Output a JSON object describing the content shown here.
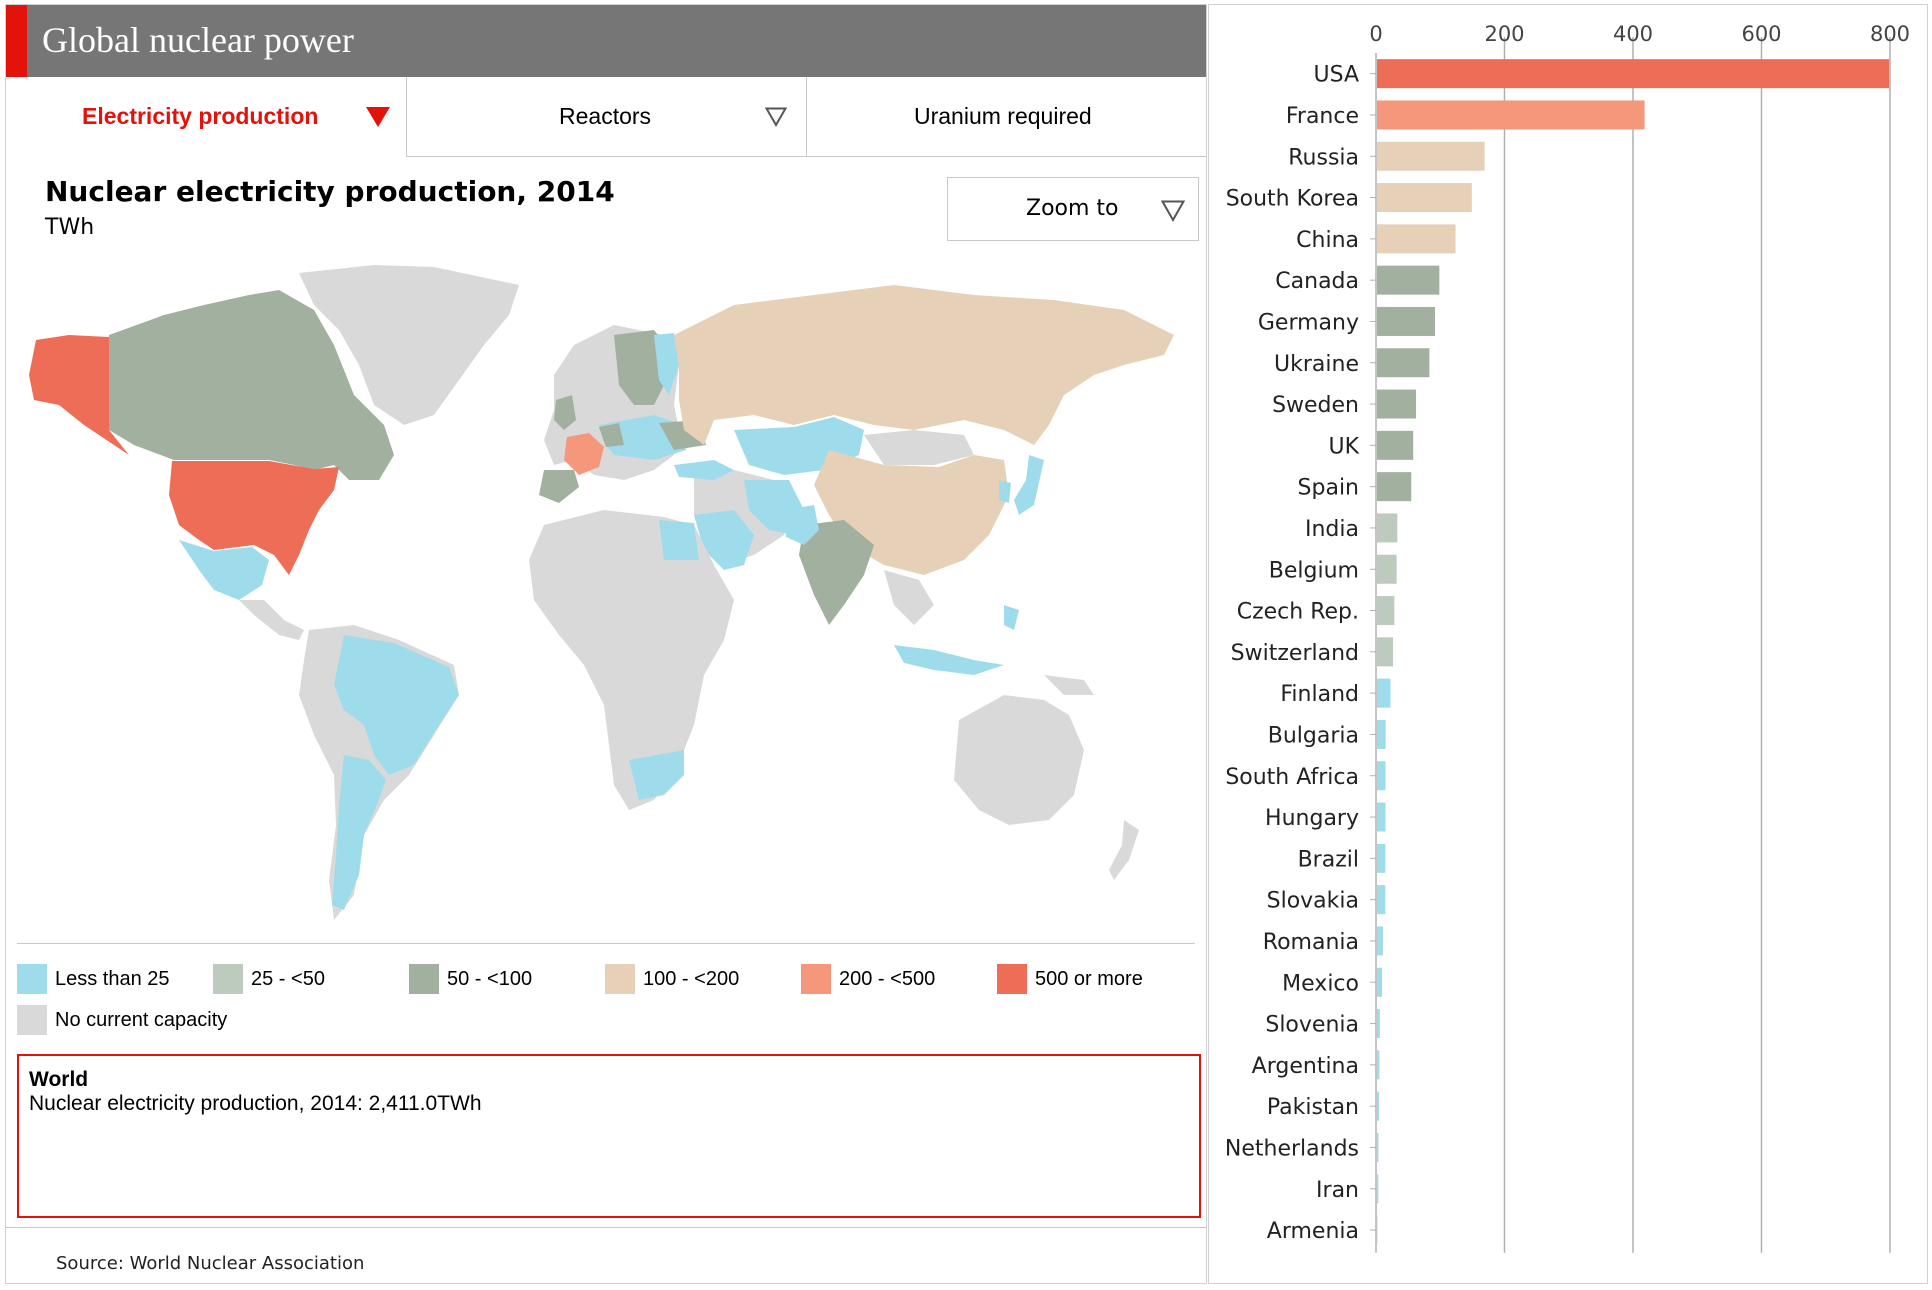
{
  "header": {
    "title": "Global nuclear power"
  },
  "tabs": [
    {
      "label": "Electricity production",
      "active": true,
      "has_arrow": true
    },
    {
      "label": "Reactors",
      "active": false,
      "has_arrow": true
    },
    {
      "label": "Uranium required",
      "active": false,
      "has_arrow": false
    }
  ],
  "map": {
    "title": "Nuclear electricity production, 2014",
    "unit": "TWh",
    "zoom_label": "Zoom to"
  },
  "legend": [
    {
      "label": "Less than 25",
      "color": "#9fdceb"
    },
    {
      "label": "25 - <50",
      "color": "#bccbbd"
    },
    {
      "label": "50 - <100",
      "color": "#a2b09f"
    },
    {
      "label": "100 - <200",
      "color": "#e6d1b8"
    },
    {
      "label": "200 - <500",
      "color": "#f4977a"
    },
    {
      "label": "500 or more",
      "color": "#ee6d56"
    },
    {
      "label": "No current capacity",
      "color": "#d9d9d9"
    }
  ],
  "info": {
    "title": "World",
    "text": "Nuclear electricity production, 2014: 2,411.0TWh"
  },
  "source": "Source: World Nuclear Association",
  "colors": {
    "accent": "#e3120b",
    "title_bar": "#767676",
    "grid": "#aaaaaa"
  },
  "chart_data": {
    "type": "bar",
    "orientation": "horizontal",
    "title": "Nuclear electricity production, 2014",
    "unit": "TWh",
    "xlim": [
      0,
      800
    ],
    "ticks": [
      0,
      200,
      400,
      600,
      800
    ],
    "grid": true,
    "categories": [
      "USA",
      "France",
      "Russia",
      "South Korea",
      "China",
      "Canada",
      "Germany",
      "Ukraine",
      "Sweden",
      "UK",
      "Spain",
      "India",
      "Belgium",
      "Czech Rep.",
      "Switzerland",
      "Finland",
      "Bulgaria",
      "South Africa",
      "Hungary",
      "Brazil",
      "Slovakia",
      "Romania",
      "Mexico",
      "Slovenia",
      "Argentina",
      "Pakistan",
      "Netherlands",
      "Iran",
      "Armenia"
    ],
    "values": [
      798.6,
      418.0,
      169.0,
      149.2,
      123.8,
      98.6,
      91.8,
      83.1,
      62.3,
      57.9,
      54.9,
      33.2,
      32.1,
      28.6,
      26.5,
      22.6,
      15.0,
      14.8,
      14.8,
      14.5,
      14.4,
      10.8,
      9.3,
      6.1,
      5.3,
      4.6,
      3.9,
      3.7,
      2.3
    ],
    "bar_colors": [
      "#ee6d56",
      "#f4977a",
      "#e6d1b8",
      "#e6d1b8",
      "#e6d1b8",
      "#a2b09f",
      "#a2b09f",
      "#a2b09f",
      "#a2b09f",
      "#a2b09f",
      "#a2b09f",
      "#bccbbd",
      "#bccbbd",
      "#bccbbd",
      "#bccbbd",
      "#9fdceb",
      "#9fdceb",
      "#9fdceb",
      "#9fdceb",
      "#9fdceb",
      "#9fdceb",
      "#9fdceb",
      "#9fdceb",
      "#9fdceb",
      "#9fdceb",
      "#9fdceb",
      "#9fdceb",
      "#9fdceb",
      "#9fdceb"
    ]
  }
}
